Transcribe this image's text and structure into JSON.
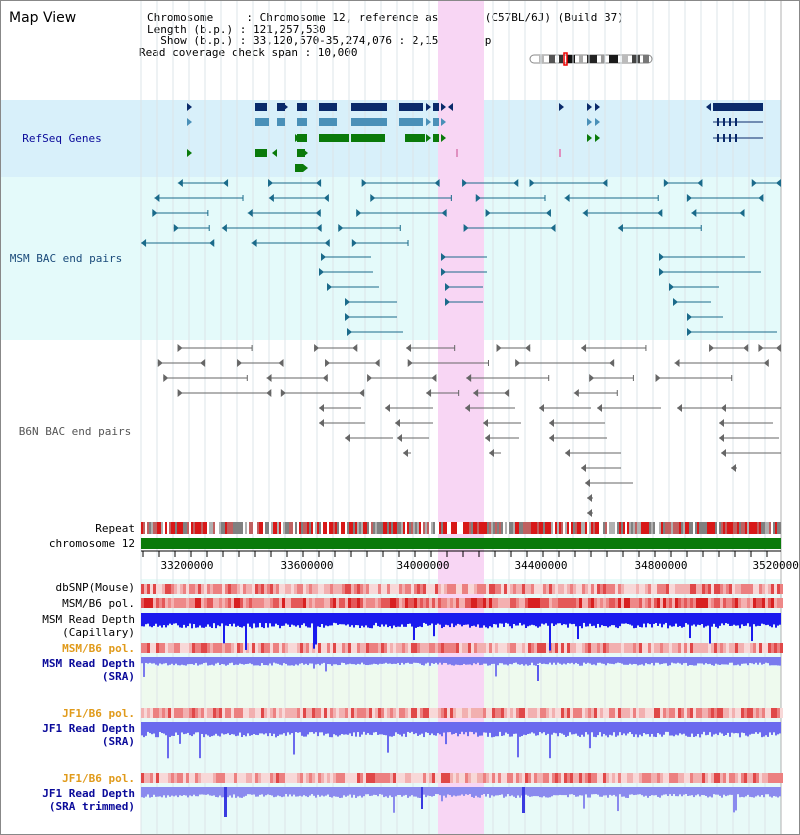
{
  "app": {
    "title": "Map View"
  },
  "info": {
    "chromosome_line": "Chromosome     : Chromosome 12, reference assembly (C57BL/6J) (Build 37)",
    "length_line": "Length (b.p.) : 121,257,530",
    "show_line": "  Show (b.p.) : 33,120,570-35,274,076 : 2,153,507 bp",
    "read_coverage_line": "Read coverage check span : 10,000"
  },
  "tracks": {
    "refseq_genes": "RefSeq Genes",
    "msm_bac": "MSM BAC end pairs",
    "b6n_bac": "B6N BAC end pairs",
    "repeat": "Repeat",
    "chromosome": "chromosome 12",
    "dbsnp": "dbSNP(Mouse)",
    "msm_b6_pol_1": "MSM/B6 pol.",
    "msm_read_depth_cap_1": "MSM Read Depth",
    "msm_read_depth_cap_2": "(Capillary)",
    "msm_b6_pol_2": "MSM/B6 pol.",
    "msm_read_depth_sra_1": "MSM Read Depth",
    "msm_read_depth_sra_2": "(SRA)",
    "jf1_b6_pol_1": "JF1/B6 pol.",
    "jf1_read_depth_sra_1": "JF1 Read Depth",
    "jf1_read_depth_sra_2": "(SRA)",
    "jf1_b6_pol_2": "JF1/B6 pol.",
    "jf1_read_depth_trim_1": "JF1 Read Depth",
    "jf1_read_depth_trim_2": "(SRA trimmed)"
  },
  "axis": {
    "ticks": [
      "33200000",
      "33600000",
      "34000000",
      "34400000",
      "34800000",
      "35200000"
    ]
  },
  "colors": {
    "refseq_bg": "#d8f0fa",
    "msm_bg": "#e4fafa",
    "highlight": "#f8d6f4",
    "chromosome_bar": "#0a7a0a",
    "refseq_blue": "#0a2a6a",
    "msm_teal": "#1a6a8a",
    "b6n_gray": "#666666",
    "label_navy": "#0a0a9a",
    "label_orange": "#e09a1a"
  }
}
